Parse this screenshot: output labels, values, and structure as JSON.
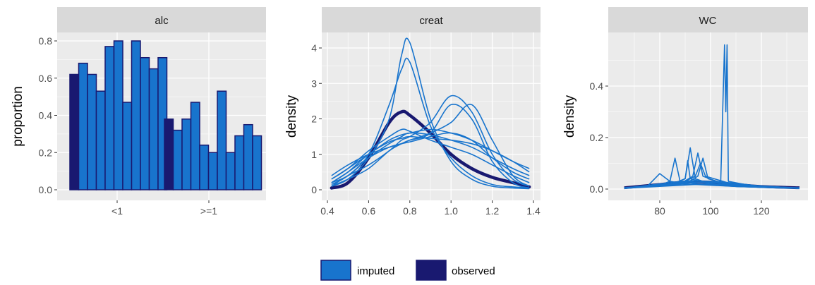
{
  "colors": {
    "imputed": "#1874cd",
    "observed": "#191970",
    "panel_bg": "#ebebeb",
    "strip_bg": "#d9d9d9",
    "grid": "#ffffff"
  },
  "legend": {
    "entries": [
      "imputed",
      "observed"
    ]
  },
  "chart_data": [
    {
      "type": "bar",
      "strip": "alc",
      "xlabel": "",
      "ylabel": "proportion",
      "categories": [
        "<1",
        ">=1"
      ],
      "ylim": [
        0,
        0.86
      ],
      "yticks": [
        "0.0",
        "0.2",
        "0.4",
        "0.6",
        "0.8"
      ],
      "ytick_values": [
        0,
        0.2,
        0.4,
        0.6,
        0.8
      ],
      "series": [
        {
          "name": "observed",
          "values": [
            0.62,
            0.38
          ]
        },
        {
          "name": "imputed",
          "values_by_category": [
            [
              0.68,
              0.62,
              0.53,
              0.77,
              0.8,
              0.47,
              0.8,
              0.71,
              0.65,
              0.71
            ],
            [
              0.32,
              0.38,
              0.47,
              0.24,
              0.2,
              0.53,
              0.2,
              0.29,
              0.35,
              0.29
            ]
          ]
        }
      ]
    },
    {
      "type": "line",
      "strip": "creat",
      "xlabel": "",
      "ylabel": "density",
      "xlim": [
        0.4,
        1.4
      ],
      "ylim": [
        -0.2,
        4.4
      ],
      "xticks": [
        "0.4",
        "0.6",
        "0.8",
        "1.0",
        "1.2",
        "1.4"
      ],
      "xtick_values": [
        0.4,
        0.6,
        0.8,
        1.0,
        1.2,
        1.4
      ],
      "yticks": [
        "0",
        "1",
        "2",
        "3",
        "4"
      ],
      "ytick_values": [
        0,
        1,
        2,
        3,
        4
      ],
      "x": [
        0.42,
        0.5,
        0.6,
        0.7,
        0.76,
        0.8,
        0.9,
        1.0,
        1.1,
        1.2,
        1.3,
        1.38
      ],
      "observed": [
        0.05,
        0.2,
        0.9,
        1.9,
        2.2,
        2.1,
        1.6,
        1.0,
        0.6,
        0.35,
        0.2,
        0.08
      ],
      "imputed": [
        [
          0.1,
          0.3,
          0.9,
          2.0,
          3.8,
          4.15,
          2.0,
          0.8,
          0.3,
          0.1,
          0.05,
          0.03
        ],
        [
          0.15,
          0.4,
          1.0,
          2.4,
          3.4,
          3.6,
          1.8,
          0.9,
          0.4,
          0.15,
          0.08,
          0.05
        ],
        [
          0.1,
          0.4,
          0.7,
          1.1,
          1.4,
          1.5,
          1.9,
          2.65,
          2.2,
          1.0,
          0.3,
          0.1
        ],
        [
          0.2,
          0.5,
          0.9,
          1.2,
          1.3,
          1.4,
          1.6,
          1.9,
          2.4,
          1.4,
          0.4,
          0.1
        ],
        [
          0.3,
          0.6,
          1.0,
          1.4,
          1.55,
          1.6,
          1.7,
          1.6,
          1.4,
          1.1,
          0.8,
          0.6
        ],
        [
          0.4,
          0.7,
          1.0,
          1.2,
          1.3,
          1.35,
          1.5,
          1.6,
          1.4,
          0.9,
          0.5,
          0.3
        ],
        [
          0.1,
          0.3,
          0.6,
          1.1,
          1.3,
          1.4,
          1.6,
          2.4,
          2.0,
          0.8,
          0.2,
          0.05
        ],
        [
          0.2,
          0.4,
          0.9,
          1.3,
          1.5,
          1.6,
          1.55,
          1.4,
          1.2,
          0.9,
          0.6,
          0.4
        ],
        [
          0.3,
          0.6,
          1.1,
          1.5,
          1.7,
          1.65,
          1.4,
          1.2,
          1.0,
          0.7,
          0.4,
          0.2
        ],
        [
          0.2,
          0.5,
          1.0,
          1.35,
          1.45,
          1.5,
          1.45,
          1.4,
          1.3,
          1.1,
          0.8,
          0.5
        ]
      ]
    },
    {
      "type": "line",
      "strip": "WC",
      "xlabel": "",
      "ylabel": "density",
      "xlim": [
        63,
        137
      ],
      "ylim": [
        -0.015,
        0.59
      ],
      "xticks": [
        "80",
        "100",
        "120"
      ],
      "xtick_values": [
        80,
        100,
        120
      ],
      "yticks": [
        "0.0",
        "0.2",
        "0.4"
      ],
      "ytick_values": [
        0,
        0.2,
        0.4
      ],
      "spike_curves": [
        [
          [
            66,
            0.003
          ],
          [
            75,
            0.01
          ],
          [
            80,
            0.06
          ],
          [
            84,
            0.03
          ],
          [
            90,
            0.02
          ],
          [
            100,
            0.015
          ],
          [
            110,
            0.01
          ],
          [
            125,
            0.005
          ],
          [
            135,
            0.003
          ]
        ],
        [
          [
            66,
            0.003
          ],
          [
            80,
            0.015
          ],
          [
            84,
            0.03
          ],
          [
            86,
            0.12
          ],
          [
            88,
            0.03
          ],
          [
            95,
            0.02
          ],
          [
            110,
            0.01
          ],
          [
            135,
            0.003
          ]
        ],
        [
          [
            66,
            0.003
          ],
          [
            85,
            0.02
          ],
          [
            90,
            0.04
          ],
          [
            92,
            0.16
          ],
          [
            94,
            0.04
          ],
          [
            100,
            0.02
          ],
          [
            115,
            0.01
          ],
          [
            135,
            0.003
          ]
        ],
        [
          [
            66,
            0.003
          ],
          [
            85,
            0.02
          ],
          [
            90,
            0.04
          ],
          [
            91,
            0.11
          ],
          [
            92,
            0.04
          ],
          [
            100,
            0.02
          ],
          [
            135,
            0.003
          ]
        ],
        [
          [
            66,
            0.003
          ],
          [
            88,
            0.02
          ],
          [
            93,
            0.05
          ],
          [
            95,
            0.14
          ],
          [
            97,
            0.05
          ],
          [
            105,
            0.02
          ],
          [
            135,
            0.003
          ]
        ],
        [
          [
            66,
            0.003
          ],
          [
            88,
            0.02
          ],
          [
            94,
            0.05
          ],
          [
            96,
            0.1
          ],
          [
            98,
            0.05
          ],
          [
            110,
            0.015
          ],
          [
            135,
            0.003
          ]
        ],
        [
          [
            66,
            0.003
          ],
          [
            90,
            0.02
          ],
          [
            95,
            0.05
          ],
          [
            97,
            0.12
          ],
          [
            99,
            0.04
          ],
          [
            110,
            0.01
          ],
          [
            135,
            0.003
          ]
        ],
        [
          [
            66,
            0.003
          ],
          [
            98,
            0.02
          ],
          [
            104,
            0.03
          ],
          [
            105.5,
            0.56
          ],
          [
            106,
            0.3
          ],
          [
            106.5,
            0.56
          ],
          [
            107,
            0.03
          ],
          [
            115,
            0.015
          ],
          [
            135,
            0.003
          ]
        ]
      ],
      "broad_curves": [
        [
          [
            66,
            0.004
          ],
          [
            80,
            0.015
          ],
          [
            90,
            0.028
          ],
          [
            100,
            0.03
          ],
          [
            110,
            0.022
          ],
          [
            120,
            0.012
          ],
          [
            135,
            0.004
          ]
        ],
        [
          [
            66,
            0.003
          ],
          [
            80,
            0.02
          ],
          [
            92,
            0.032
          ],
          [
            102,
            0.025
          ],
          [
            115,
            0.012
          ],
          [
            135,
            0.003
          ]
        ],
        [
          [
            66,
            0.005
          ],
          [
            85,
            0.02
          ],
          [
            95,
            0.026
          ],
          [
            105,
            0.022
          ],
          [
            120,
            0.01
          ],
          [
            135,
            0.005
          ]
        ]
      ],
      "observed": [
        [
          66,
          0.005
        ],
        [
          80,
          0.018
        ],
        [
          90,
          0.027
        ],
        [
          100,
          0.027
        ],
        [
          110,
          0.018
        ],
        [
          120,
          0.01
        ],
        [
          135,
          0.005
        ]
      ]
    }
  ]
}
